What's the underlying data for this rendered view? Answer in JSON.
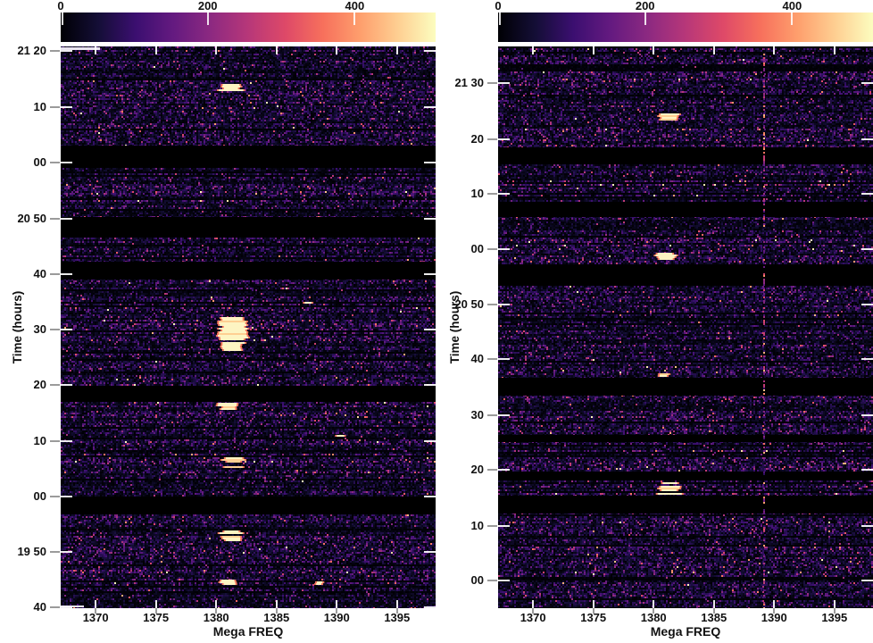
{
  "figure": {
    "description": "Two side-by-side dynamic spectra (frequency vs time waterfall plots) with intensity colorbars on top",
    "background": "#ffffff",
    "text_color": "#111111"
  },
  "colorbar": {
    "min": 0,
    "max": 510,
    "tick_values": [
      0,
      200,
      400
    ],
    "tick_labels": [
      "0",
      "200",
      "400"
    ],
    "colormap": "magma",
    "stops": [
      "#000004",
      "#140e36",
      "#3b0f70",
      "#641a80",
      "#8c2981",
      "#b73779",
      "#de4968",
      "#f7705c",
      "#fe9f6d",
      "#fecf92",
      "#fcfdbf"
    ]
  },
  "chart_data": [
    {
      "id": "left-spectrogram",
      "type": "heatmap",
      "xlabel": "Mega FREQ",
      "ylabel": "Time (hours)",
      "x_range_mhz": [
        1367.1,
        1398.2
      ],
      "x_ticks": [
        1370,
        1375,
        1380,
        1385,
        1390,
        1395
      ],
      "y_time_top": "21:21",
      "y_time_bottom": "19:40",
      "y_ticks": [
        {
          "label": "21 20",
          "f": 0.008
        },
        {
          "label": "10",
          "f": 0.108
        },
        {
          "label": "00",
          "f": 0.207
        },
        {
          "label": "20 50",
          "f": 0.307
        },
        {
          "label": "40",
          "f": 0.405
        },
        {
          "label": "30",
          "f": 0.504
        },
        {
          "label": "20",
          "f": 0.603
        },
        {
          "label": "10",
          "f": 0.703
        },
        {
          "label": "00",
          "f": 0.801
        },
        {
          "label": "19 50",
          "f": 0.9
        },
        {
          "label": "40",
          "f": 0.998
        }
      ],
      "data_gaps": [
        {
          "f0": 0.176,
          "f1": 0.216,
          "time": "21:03-20:59"
        },
        {
          "f0": 0.304,
          "f1": 0.34,
          "time": "20:50-20:47"
        },
        {
          "f0": 0.383,
          "f1": 0.415,
          "time": "20:42-20:39"
        },
        {
          "f0": 0.604,
          "f1": 0.633,
          "time": "20:20-20:17"
        },
        {
          "f0": 0.801,
          "f1": 0.833,
          "time": "20:00-19:57"
        }
      ],
      "bursts": [
        {
          "freq_mhz": 1381.3,
          "width_mhz": 1.6,
          "f0": 0.066,
          "f1": 0.079,
          "time": "21:14",
          "peak": "saturated >=510"
        },
        {
          "freq_mhz": 1381.4,
          "width_mhz": 1.9,
          "f0": 0.482,
          "f1": 0.528,
          "time": "20:31-20:26",
          "peak": "saturated >=510"
        },
        {
          "freq_mhz": 1381.3,
          "width_mhz": 1.4,
          "f0": 0.53,
          "f1": 0.541,
          "time": "20:25",
          "peak": "~430"
        },
        {
          "freq_mhz": 1381.0,
          "width_mhz": 1.3,
          "f0": 0.634,
          "f1": 0.646,
          "time": "20:17",
          "peak": "~450"
        },
        {
          "freq_mhz": 1381.4,
          "width_mhz": 1.5,
          "f0": 0.732,
          "f1": 0.751,
          "time": "20:07",
          "peak": "saturated >=510"
        },
        {
          "freq_mhz": 1381.3,
          "width_mhz": 1.5,
          "f0": 0.862,
          "f1": 0.88,
          "time": "19:54",
          "peak": "saturated >=510"
        },
        {
          "freq_mhz": 1381.0,
          "width_mhz": 1.2,
          "f0": 0.949,
          "f1": 0.958,
          "time": "19:45",
          "peak": "~380"
        },
        {
          "freq_mhz": 1387.6,
          "width_mhz": 0.5,
          "f0": 0.454,
          "f1": 0.458,
          "time": "20:36",
          "peak": "~300"
        },
        {
          "freq_mhz": 1390.3,
          "width_mhz": 0.6,
          "f0": 0.691,
          "f1": 0.695,
          "time": "20:11",
          "peak": "~300"
        },
        {
          "freq_mhz": 1388.6,
          "width_mhz": 0.4,
          "f0": 0.953,
          "f1": 0.957,
          "time": "19:45",
          "peak": "~300"
        }
      ],
      "rfi_line_mhz": null,
      "noise_seed": 11
    },
    {
      "id": "right-spectrogram",
      "type": "heatmap",
      "xlabel": "Mega FREQ",
      "ylabel": "Time (hours)",
      "x_range_mhz": [
        1367.1,
        1398.2
      ],
      "x_ticks": [
        1370,
        1375,
        1380,
        1385,
        1390,
        1395
      ],
      "y_time_top": "21:37",
      "y_time_bottom": "19:55",
      "y_ticks": [
        {
          "label": "21 30",
          "f": 0.065
        },
        {
          "label": "20",
          "f": 0.165
        },
        {
          "label": "10",
          "f": 0.262
        },
        {
          "label": "00",
          "f": 0.361
        },
        {
          "label": "20 50",
          "f": 0.46
        },
        {
          "label": "40",
          "f": 0.556
        },
        {
          "label": "30",
          "f": 0.657
        },
        {
          "label": "20",
          "f": 0.754
        },
        {
          "label": "10",
          "f": 0.854
        },
        {
          "label": "00",
          "f": 0.951
        }
      ],
      "data_gaps": [
        {
          "f0": 0.18,
          "f1": 0.211,
          "time": "21:18-21:15"
        },
        {
          "f0": 0.277,
          "f1": 0.304,
          "time": "21:08-21:06"
        },
        {
          "f0": 0.388,
          "f1": 0.426,
          "time": "20:58-20:54"
        },
        {
          "f0": 0.59,
          "f1": 0.622,
          "time": "20:38-20:35"
        },
        {
          "f0": 0.692,
          "f1": 0.704,
          "time": "20:28-20:27"
        },
        {
          "f0": 0.757,
          "f1": 0.773,
          "time": "20:21-20:20"
        },
        {
          "f0": 0.8,
          "f1": 0.832,
          "time": "20:17-20:14"
        }
      ],
      "bursts": [
        {
          "freq_mhz": 1381.3,
          "width_mhz": 1.5,
          "f0": 0.119,
          "f1": 0.13,
          "time": "21:25",
          "peak": "saturated >=510"
        },
        {
          "freq_mhz": 1381.0,
          "width_mhz": 1.4,
          "f0": 0.368,
          "f1": 0.378,
          "time": "20:59",
          "peak": "~450"
        },
        {
          "freq_mhz": 1380.8,
          "width_mhz": 0.8,
          "f0": 0.582,
          "f1": 0.588,
          "time": "20:39",
          "peak": "~350"
        },
        {
          "freq_mhz": 1381.4,
          "width_mhz": 1.7,
          "f0": 0.776,
          "f1": 0.798,
          "time": "20:17-20:15",
          "peak": "saturated >=510"
        }
      ],
      "rfi_line_mhz": 1389.1,
      "noise_seed": 23
    }
  ]
}
